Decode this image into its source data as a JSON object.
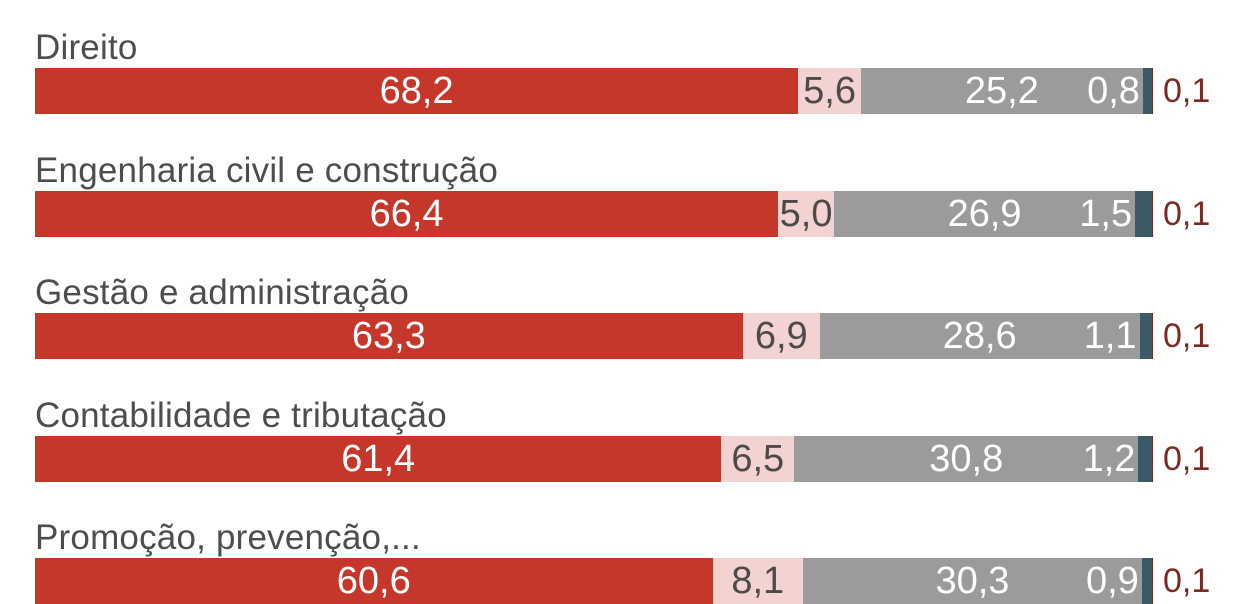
{
  "chart_data": {
    "type": "bar",
    "orientation": "horizontal",
    "stacked": true,
    "normalized_percent": true,
    "title": "",
    "legend_visible": false,
    "decimal_separator": ",",
    "categories": [
      "Direito",
      "Engenharia civil e construção",
      "Gestão e administração",
      "Contabilidade e tributação",
      "Promoção, prevenção,..."
    ],
    "series": [
      {
        "name": "segment-1",
        "color": "#c5362b",
        "values": [
          68.2,
          66.4,
          63.3,
          61.4,
          60.6
        ]
      },
      {
        "name": "segment-2",
        "color": "#f2d3d1",
        "values": [
          5.6,
          5.0,
          6.9,
          6.5,
          8.1
        ]
      },
      {
        "name": "segment-3",
        "color": "#9c9b9b",
        "values": [
          25.2,
          26.9,
          28.6,
          30.8,
          30.3
        ]
      },
      {
        "name": "segment-4",
        "color": "#3b5a68",
        "values": [
          0.8,
          1.5,
          1.1,
          1.2,
          0.9
        ]
      },
      {
        "name": "segment-5",
        "color": "#7b2a23",
        "values": [
          0.1,
          0.1,
          0.1,
          0.1,
          0.1
        ]
      }
    ],
    "label_colors": {
      "category_text": "#4d4d4d",
      "value_on_dark": "#ffffff",
      "value_on_pink": "#4d4a49",
      "value_outside": "#7b2a23"
    },
    "rows": [
      {
        "label": "Direito",
        "values": [
          68.2,
          5.6,
          25.2,
          0.8,
          0.1
        ],
        "display": [
          "68,2",
          "5,6",
          "25,2",
          "0,8",
          "0,1"
        ]
      },
      {
        "label": "Engenharia civil e construção",
        "values": [
          66.4,
          5.0,
          26.9,
          1.5,
          0.1
        ],
        "display": [
          "66,4",
          "5,0",
          "26,9",
          "1,5",
          "0,1"
        ]
      },
      {
        "label": "Gestão e administração",
        "values": [
          63.3,
          6.9,
          28.6,
          1.1,
          0.1
        ],
        "display": [
          "63,3",
          "6,9",
          "28,6",
          "1,1",
          "0,1"
        ]
      },
      {
        "label": "Contabilidade e tributação",
        "values": [
          61.4,
          6.5,
          30.8,
          1.2,
          0.1
        ],
        "display": [
          "61,4",
          "6,5",
          "30,8",
          "1,2",
          "0,1"
        ]
      },
      {
        "label": "Promoção, prevenção,...",
        "values": [
          60.6,
          8.1,
          30.3,
          0.9,
          0.1
        ],
        "display": [
          "60,6",
          "8,1",
          "30,3",
          "0,9",
          "0,1"
        ]
      }
    ]
  }
}
